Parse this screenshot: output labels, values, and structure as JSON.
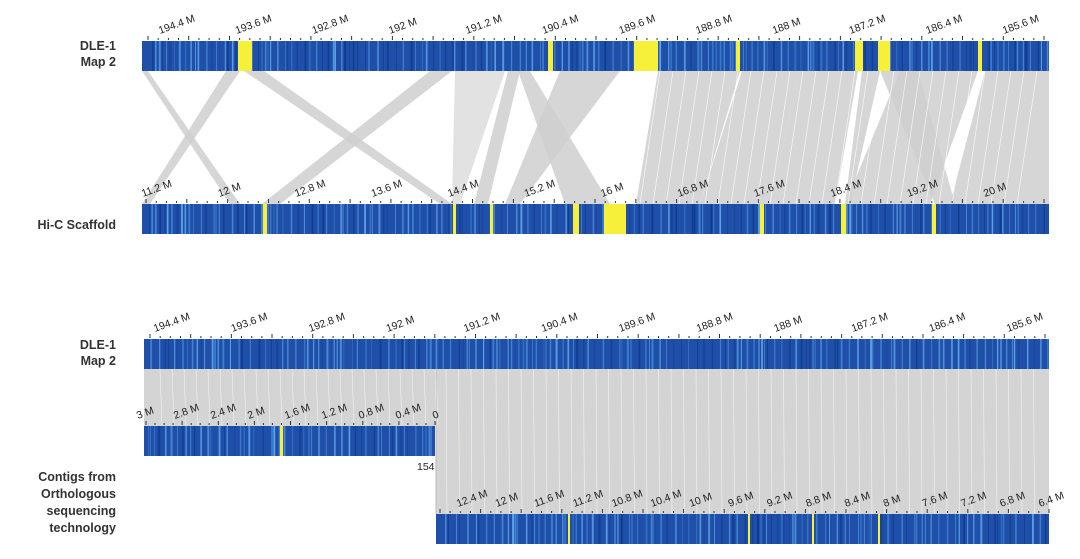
{
  "panels": {
    "top": {
      "ref_label": [
        "DLE-1",
        "Map 2"
      ],
      "query_label": [
        "Hi-C Scaffold"
      ],
      "ref_ticks": [
        "194.4 M",
        "193.6 M",
        "192.8 M",
        "192 M",
        "191.2 M",
        "190.4 M",
        "189.6 M",
        "188.8 M",
        "188 M",
        "187.2 M",
        "186.4 M",
        "185.6 M"
      ],
      "query_ticks": [
        "11.2 M",
        "12 M",
        "12.8 M",
        "13.6 M",
        "14.4 M",
        "15.2 M",
        "16 M",
        "16.8 M",
        "17.6 M",
        "18.4 M",
        "19.2 M",
        "20 M"
      ]
    },
    "bottom": {
      "ref_label": [
        "DLE-1",
        "Map 2"
      ],
      "query_label": [
        "Contigs from",
        "Orthologous",
        "sequencing",
        "technology"
      ],
      "ref_ticks": [
        "194.4 M",
        "193.6 M",
        "192.8 M",
        "192 M",
        "191.2 M",
        "190.4 M",
        "189.6 M",
        "188.8 M",
        "188 M",
        "187.2 M",
        "186.4 M",
        "185.6 M"
      ],
      "contig1_ticks": [
        "3 M",
        "2.8 M",
        "2.4 M",
        "2 M",
        "1.6 M",
        "1.2 M",
        "0.8 M",
        "0.4 M",
        "0"
      ],
      "contig1_end_label": "154",
      "contig2_ticks": [
        "12.4 M",
        "12 M",
        "11.6 M",
        "11.2 M",
        "10.8 M",
        "10.4 M",
        "10 M",
        "9.6 M",
        "9.2 M",
        "8.8 M",
        "8.4 M",
        "8 M",
        "7.6 M",
        "7.2 M",
        "6.8 M",
        "6.4 M"
      ]
    }
  },
  "colors": {
    "track_blue": "#1f4fa8",
    "highlight_yellow": "#f6f03a",
    "link_gray": "#cfcfcf"
  }
}
